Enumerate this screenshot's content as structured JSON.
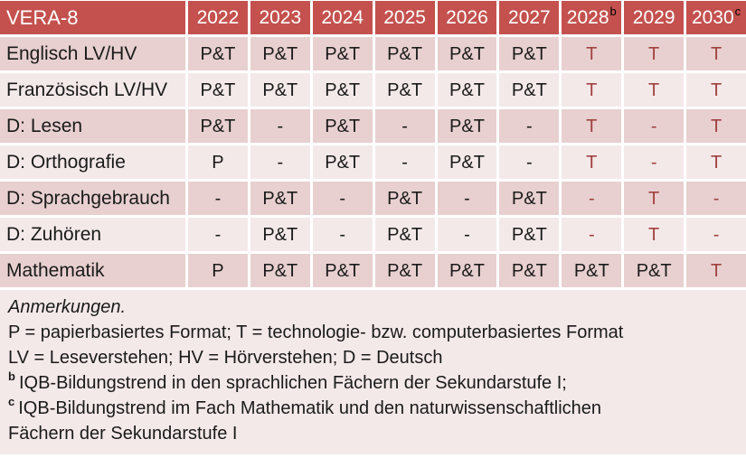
{
  "colors": {
    "header_bg": "#C4514E",
    "header_text": "#FFFFFF",
    "band_dark": "#E8D0D0",
    "band_light": "#F4E9E9",
    "accent_red": "#A0413E",
    "grid_gap": "#FFFFFF",
    "body_text": "#1A1A1A"
  },
  "table": {
    "title": "VERA-8",
    "columns": [
      {
        "year": "2022"
      },
      {
        "year": "2023"
      },
      {
        "year": "2024"
      },
      {
        "year": "2025"
      },
      {
        "year": "2026"
      },
      {
        "year": "2027"
      },
      {
        "year": "2028",
        "sup": "b"
      },
      {
        "year": "2029"
      },
      {
        "year": "2030",
        "sup": "c"
      }
    ],
    "rows": [
      {
        "label": "Englisch LV/HV",
        "cells": [
          {
            "text": "P&T"
          },
          {
            "text": "P&T"
          },
          {
            "text": "P&T"
          },
          {
            "text": "P&T"
          },
          {
            "text": "P&T"
          },
          {
            "text": "P&T"
          },
          {
            "text": "T",
            "accent": true
          },
          {
            "text": "T",
            "accent": true
          },
          {
            "text": "T",
            "accent": true
          }
        ]
      },
      {
        "label": "Französisch LV/HV",
        "cells": [
          {
            "text": "P&T"
          },
          {
            "text": "P&T"
          },
          {
            "text": "P&T"
          },
          {
            "text": "P&T"
          },
          {
            "text": "P&T"
          },
          {
            "text": "P&T"
          },
          {
            "text": "T",
            "accent": true
          },
          {
            "text": "T",
            "accent": true
          },
          {
            "text": "T",
            "accent": true
          }
        ]
      },
      {
        "label": "D: Lesen",
        "cells": [
          {
            "text": "P&T"
          },
          {
            "text": "-"
          },
          {
            "text": "P&T"
          },
          {
            "text": "-"
          },
          {
            "text": "P&T"
          },
          {
            "text": "-"
          },
          {
            "text": "T",
            "accent": true
          },
          {
            "text": "-",
            "accent": true
          },
          {
            "text": "T",
            "accent": true
          }
        ]
      },
      {
        "label": "D: Orthografie",
        "cells": [
          {
            "text": "P"
          },
          {
            "text": "-"
          },
          {
            "text": "P&T"
          },
          {
            "text": "-"
          },
          {
            "text": "P&T"
          },
          {
            "text": "-"
          },
          {
            "text": "T",
            "accent": true
          },
          {
            "text": "-",
            "accent": true
          },
          {
            "text": "T",
            "accent": true
          }
        ]
      },
      {
        "label": "D: Sprachgebrauch",
        "cells": [
          {
            "text": "-"
          },
          {
            "text": "P&T"
          },
          {
            "text": "-"
          },
          {
            "text": "P&T"
          },
          {
            "text": "-"
          },
          {
            "text": "P&T"
          },
          {
            "text": "-",
            "accent": true
          },
          {
            "text": "T",
            "accent": true
          },
          {
            "text": "-",
            "accent": true
          }
        ]
      },
      {
        "label": "D: Zuhören",
        "cells": [
          {
            "text": "-"
          },
          {
            "text": "P&T"
          },
          {
            "text": "-"
          },
          {
            "text": "P&T"
          },
          {
            "text": "-"
          },
          {
            "text": "P&T"
          },
          {
            "text": "-",
            "accent": true
          },
          {
            "text": "T",
            "accent": true
          },
          {
            "text": "-",
            "accent": true
          }
        ]
      },
      {
        "label": "Mathematik",
        "cells": [
          {
            "text": "P"
          },
          {
            "text": "P&T"
          },
          {
            "text": "P&T"
          },
          {
            "text": "P&T"
          },
          {
            "text": "P&T"
          },
          {
            "text": "P&T"
          },
          {
            "text": "P&T"
          },
          {
            "text": "P&T"
          },
          {
            "text": "T",
            "accent": true
          }
        ]
      }
    ]
  },
  "notes": {
    "heading": "Anmerkungen.",
    "lines": [
      "P = papierbasiertes Format; T = technologie- bzw. computerbasiertes Format",
      "LV = Leseverstehen; HV = Hörverstehen; D = Deutsch"
    ],
    "footnote_b": {
      "marker": "b",
      "text": "IQB-Bildungstrend in den sprachlichen Fächern der Sekundarstufe I;"
    },
    "footnote_c": {
      "marker": "c",
      "text": "IQB-Bildungstrend im Fach Mathematik und den naturwissenschaftlichen",
      "text2": "Fächern der Sekundarstufe I"
    }
  }
}
